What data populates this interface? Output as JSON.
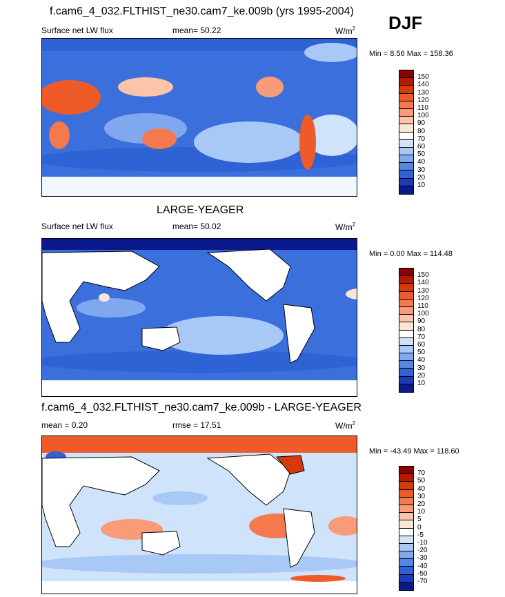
{
  "season": "DJF",
  "panels": [
    {
      "title": "f.cam6_4_032.FLTHIST_ne30.cam7_ke.009b (yrs 1995-2004)",
      "variable": "Surface net LW flux",
      "stat_left": "",
      "stat_mid": "mean=  50.22",
      "units": "W/m",
      "units_exp": "2",
      "minmax": "Min =   8.56 Max = 158.36",
      "levels": [
        "150",
        "140",
        "130",
        "120",
        "110",
        "100",
        "90",
        "80",
        "70",
        "60",
        "50",
        "40",
        "30",
        "20",
        "10"
      ],
      "colors": [
        "#8b0000",
        "#b31b00",
        "#d73a0a",
        "#ee5a28",
        "#f47a4d",
        "#f99b78",
        "#fcc4a8",
        "#fde6d8",
        "#ffffff",
        "#cfe3fb",
        "#a8c8f6",
        "#7fa8ee",
        "#5686e2",
        "#2f62d4",
        "#1a3eb8",
        "#0a1a8c"
      ]
    },
    {
      "title": "LARGE-YEAGER",
      "variable": "Surface net LW flux",
      "stat_left": "",
      "stat_mid": "mean=  50.02",
      "units": "W/m",
      "units_exp": "2",
      "minmax": "Min =   0.00 Max = 114.48",
      "levels": [
        "150",
        "140",
        "130",
        "120",
        "110",
        "100",
        "90",
        "80",
        "70",
        "60",
        "50",
        "40",
        "30",
        "20",
        "10"
      ],
      "colors": [
        "#8b0000",
        "#b31b00",
        "#d73a0a",
        "#ee5a28",
        "#f47a4d",
        "#f99b78",
        "#fcc4a8",
        "#fde6d8",
        "#ffffff",
        "#cfe3fb",
        "#a8c8f6",
        "#7fa8ee",
        "#5686e2",
        "#2f62d4",
        "#1a3eb8",
        "#0a1a8c"
      ]
    },
    {
      "title": "f.cam6_4_032.FLTHIST_ne30.cam7_ke.009b - LARGE-YEAGER",
      "variable": "",
      "stat_left": "mean =   0.20",
      "stat_mid": "rmse =  17.51",
      "units": "W/m",
      "units_exp": "2",
      "minmax": "Min = -43.49 Max = 118.60",
      "levels": [
        "70",
        "50",
        "40",
        "30",
        "20",
        "10",
        "5",
        "0",
        "-5",
        "-10",
        "-20",
        "-30",
        "-40",
        "-50",
        "-70"
      ],
      "colors": [
        "#8b0000",
        "#b31b00",
        "#d73a0a",
        "#ee5a28",
        "#f47a4d",
        "#f99b78",
        "#fcc4a8",
        "#fde6d8",
        "#ffffff",
        "#cfe3fb",
        "#a8c8f6",
        "#7fa8ee",
        "#5686e2",
        "#2f62d4",
        "#1a3eb8",
        "#0a1a8c"
      ]
    }
  ]
}
